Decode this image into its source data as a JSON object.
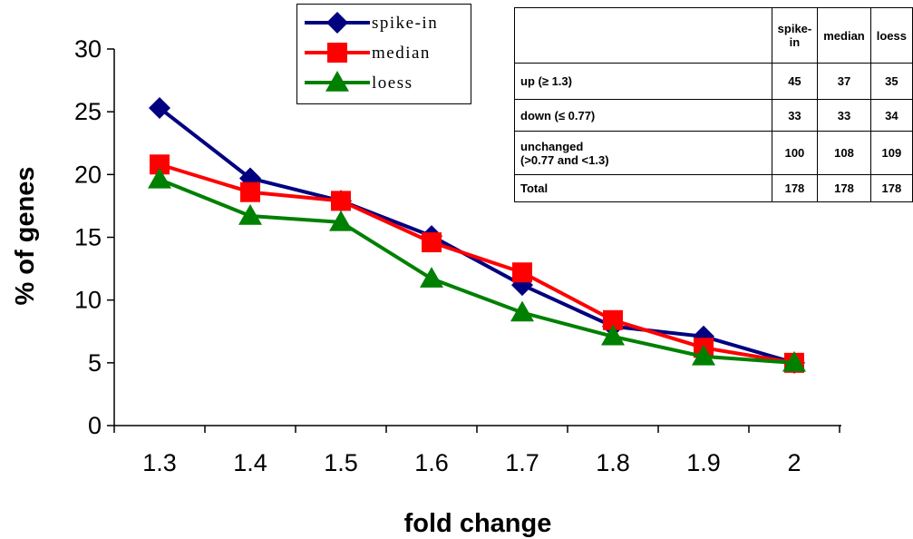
{
  "chart_data": {
    "type": "line",
    "xlabel": "fold change",
    "ylabel": "% of genes",
    "x": [
      "1.3",
      "1.4",
      "1.5",
      "1.6",
      "1.7",
      "1.8",
      "1.9",
      "2"
    ],
    "ylim": [
      0,
      30
    ],
    "yticks": [
      0,
      5,
      10,
      15,
      20,
      25,
      30
    ],
    "grid": false,
    "legend_position": "top-center",
    "series": [
      {
        "name": "spike-in",
        "color": "#000080",
        "marker": "diamond",
        "values": [
          25.3,
          19.7,
          17.9,
          15.1,
          11.2,
          7.9,
          7.1,
          5.0
        ]
      },
      {
        "name": "median",
        "color": "#ff0000",
        "marker": "square",
        "values": [
          20.8,
          18.6,
          17.9,
          14.6,
          12.2,
          8.4,
          6.2,
          5.0
        ]
      },
      {
        "name": "loess",
        "color": "#008000",
        "marker": "triangle",
        "values": [
          19.6,
          16.7,
          16.2,
          11.7,
          9.0,
          7.1,
          5.5,
          5.0
        ]
      }
    ]
  },
  "table": {
    "columns": [
      "",
      "spike-in",
      "median",
      "loess"
    ],
    "rows": [
      {
        "label": "up (≥ 1.3)",
        "values": [
          "45",
          "37",
          "35"
        ]
      },
      {
        "label": "down (≤ 0.77)",
        "values": [
          "33",
          "33",
          "34"
        ]
      },
      {
        "label": "unchanged",
        "label2": "(>0.77 and <1.3)",
        "values": [
          "100",
          "108",
          "109"
        ]
      },
      {
        "label": "Total",
        "values": [
          "178",
          "178",
          "178"
        ]
      }
    ]
  }
}
